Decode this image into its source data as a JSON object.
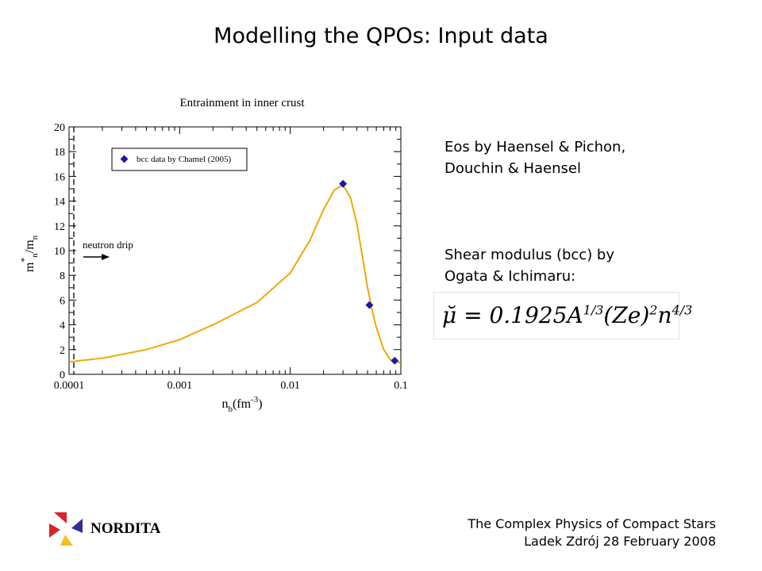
{
  "slide": {
    "title": "Modelling the QPOs: Input data"
  },
  "right_panel": {
    "eos_line1": "Eos by Haensel & Pichon,",
    "eos_line2": "Douchin & Haensel",
    "shear_line1": "Shear modulus (bcc) by",
    "shear_line2": "Ogata & Ichimaru:",
    "formula": {
      "lead": "μ̆ = 0.1925",
      "A": "A",
      "A_exp": "1/3",
      "Ze": "(Ze)",
      "Ze_exp": "2",
      "n": "n",
      "n_exp": "4/3"
    }
  },
  "footer": {
    "org": "NORDITA",
    "line1": "The Complex Physics of Compact Stars",
    "line2": "Ladek Zdrój 28 February 2008",
    "logo_colors": [
      "#d6242a",
      "#2e3192",
      "#f2c21b"
    ]
  },
  "chart_data": {
    "type": "line",
    "title": "Entrainment in inner crust",
    "xlabel": "n",
    "xlabel_sub": "b",
    "xlabel_unit": "(fm",
    "xlabel_sup": "-3",
    "xlabel_close": ")",
    "ylabel": "m",
    "ylabel_sup": "*",
    "ylabel_sub": "n",
    "ylabel_mid": "/m",
    "ylabel_sub2": "n",
    "xscale": "log",
    "xlim": [
      0.0001,
      0.1
    ],
    "ylim": [
      0,
      20
    ],
    "xticks": [
      "0.0001",
      "0.001",
      "0.01",
      "0.1"
    ],
    "yticks": [
      "0",
      "2",
      "4",
      "6",
      "8",
      "10",
      "12",
      "14",
      "16",
      "18",
      "20"
    ],
    "line_color": "#f0a80a",
    "marker_color": "#1a1aa8",
    "series": [
      {
        "kind": "line",
        "x": [
          0.0001,
          0.0002,
          0.0005,
          0.001,
          0.002,
          0.005,
          0.01,
          0.015,
          0.02,
          0.025,
          0.03,
          0.035,
          0.04,
          0.045,
          0.05,
          0.055,
          0.06,
          0.07,
          0.08,
          0.09,
          0.1
        ],
        "y": [
          1.0,
          1.3,
          2.0,
          2.8,
          4.0,
          5.8,
          8.2,
          10.8,
          13.3,
          14.9,
          15.3,
          14.3,
          12.2,
          9.5,
          7.0,
          5.2,
          3.8,
          2.0,
          1.2,
          1.0,
          0.95
        ]
      },
      {
        "kind": "markers",
        "name": "bcc data by Chamel (2005)",
        "x": [
          0.03,
          0.052,
          0.088
        ],
        "y": [
          15.4,
          5.6,
          1.1
        ]
      }
    ],
    "legend_position": "top-left",
    "annotation": "neutron drip",
    "annotation_x": 0.0001,
    "annotation_y": 10
  }
}
